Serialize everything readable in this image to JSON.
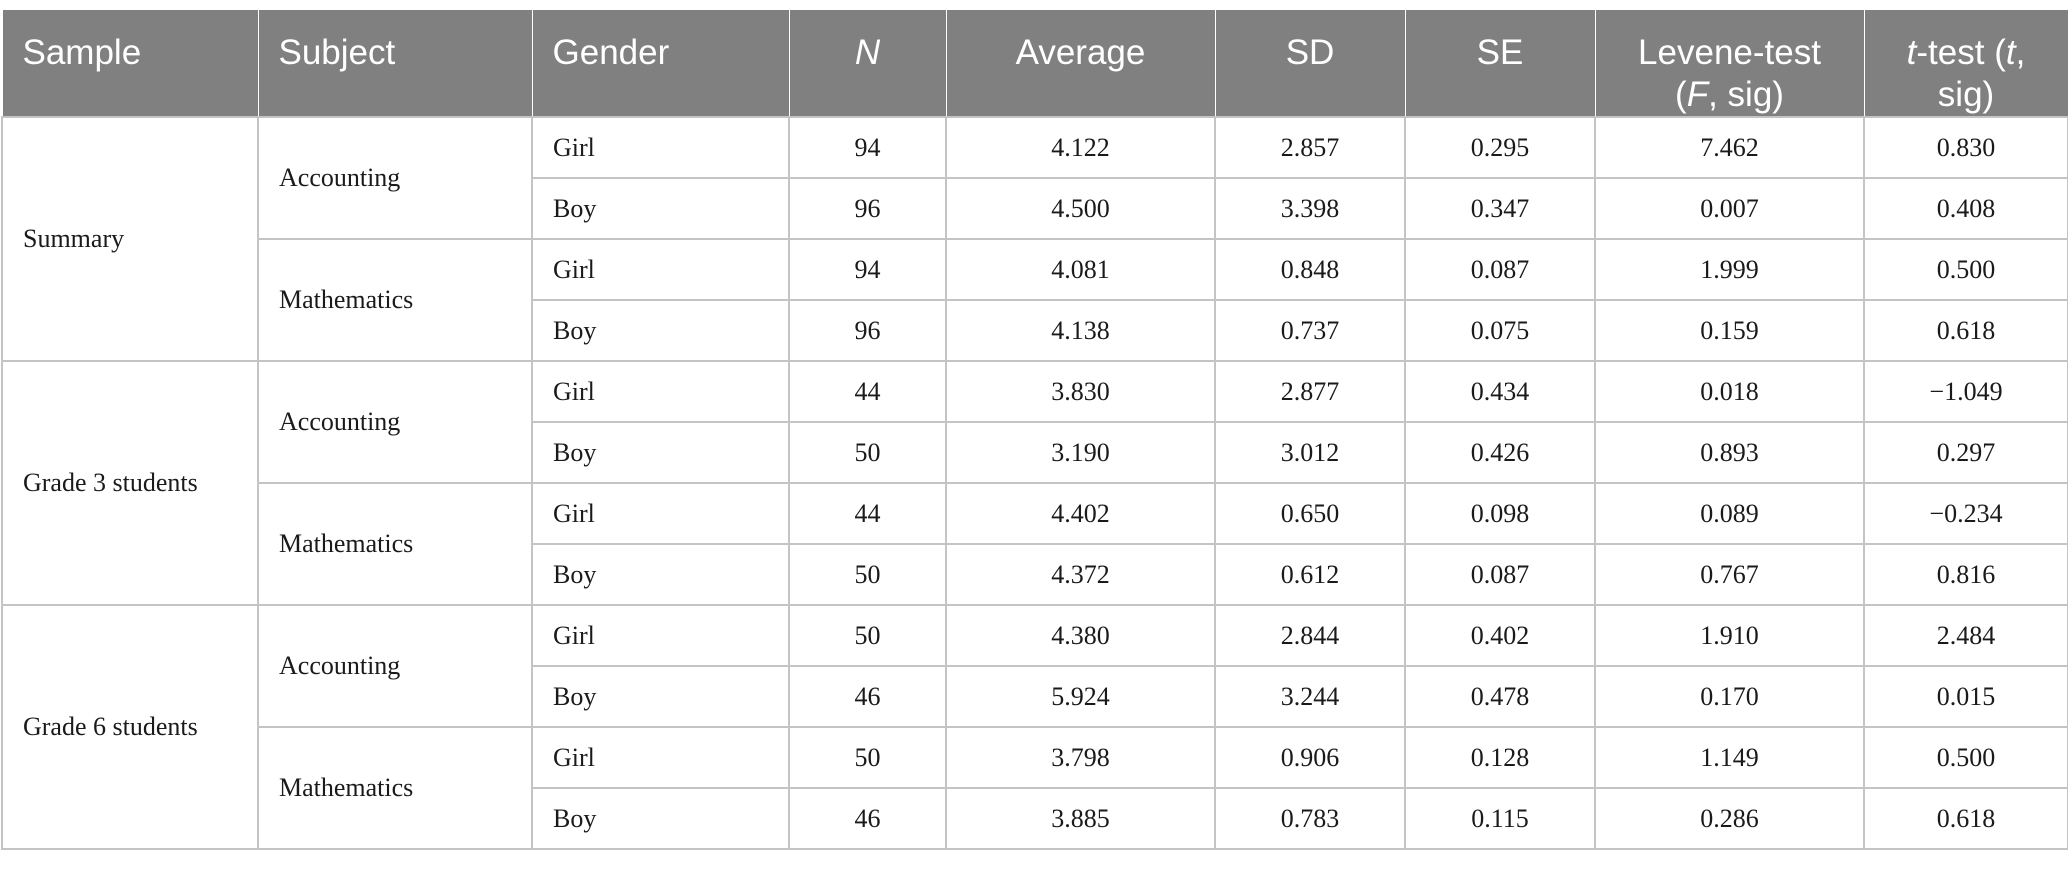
{
  "table": {
    "headers": {
      "sample": "Sample",
      "subject": "Subject",
      "gender": "Gender",
      "n": "N",
      "average": "Average",
      "sd": "SD",
      "se": "SE",
      "levene_line1": "Levene-test",
      "levene_line2_pre": "(",
      "levene_line2_italic": "F",
      "levene_line2_post": ", sig)",
      "ttest_italic1": "t",
      "ttest_mid": "-test (",
      "ttest_italic2": "t",
      "ttest_post": ",",
      "ttest_line2": "sig)"
    },
    "groups": [
      {
        "sample": "Summary",
        "subjects": [
          {
            "name": "Accounting",
            "rows": [
              {
                "gender": "Girl",
                "n": "94",
                "average": "4.122",
                "sd": "2.857",
                "se": "0.295",
                "levene": "7.462",
                "ttest": "0.830"
              },
              {
                "gender": "Boy",
                "n": "96",
                "average": "4.500",
                "sd": "3.398",
                "se": "0.347",
                "levene": "0.007",
                "ttest": "0.408"
              }
            ]
          },
          {
            "name": "Mathematics",
            "rows": [
              {
                "gender": "Girl",
                "n": "94",
                "average": "4.081",
                "sd": "0.848",
                "se": "0.087",
                "levene": "1.999",
                "ttest": "0.500"
              },
              {
                "gender": "Boy",
                "n": "96",
                "average": "4.138",
                "sd": "0.737",
                "se": "0.075",
                "levene": "0.159",
                "ttest": "0.618"
              }
            ]
          }
        ]
      },
      {
        "sample": "Grade 3 students",
        "subjects": [
          {
            "name": "Accounting",
            "rows": [
              {
                "gender": "Girl",
                "n": "44",
                "average": "3.830",
                "sd": "2.877",
                "se": "0.434",
                "levene": "0.018",
                "ttest": "−1.049"
              },
              {
                "gender": "Boy",
                "n": "50",
                "average": "3.190",
                "sd": "3.012",
                "se": "0.426",
                "levene": "0.893",
                "ttest": "0.297"
              }
            ]
          },
          {
            "name": "Mathematics",
            "rows": [
              {
                "gender": "Girl",
                "n": "44",
                "average": "4.402",
                "sd": "0.650",
                "se": "0.098",
                "levene": "0.089",
                "ttest": "−0.234"
              },
              {
                "gender": "Boy",
                "n": "50",
                "average": "4.372",
                "sd": "0.612",
                "se": "0.087",
                "levene": "0.767",
                "ttest": "0.816"
              }
            ]
          }
        ]
      },
      {
        "sample": "Grade 6 students",
        "subjects": [
          {
            "name": "Accounting",
            "rows": [
              {
                "gender": "Girl",
                "n": "50",
                "average": "4.380",
                "sd": "2.844",
                "se": "0.402",
                "levene": "1.910",
                "ttest": "2.484"
              },
              {
                "gender": "Boy",
                "n": "46",
                "average": "5.924",
                "sd": "3.244",
                "se": "0.478",
                "levene": "0.170",
                "ttest": "0.015"
              }
            ]
          },
          {
            "name": "Mathematics",
            "rows": [
              {
                "gender": "Girl",
                "n": "50",
                "average": "3.798",
                "sd": "0.906",
                "se": "0.128",
                "levene": "1.149",
                "ttest": "0.500"
              },
              {
                "gender": "Boy",
                "n": "46",
                "average": "3.885",
                "sd": "0.783",
                "se": "0.115",
                "levene": "0.286",
                "ttest": "0.618"
              }
            ]
          }
        ]
      }
    ]
  }
}
